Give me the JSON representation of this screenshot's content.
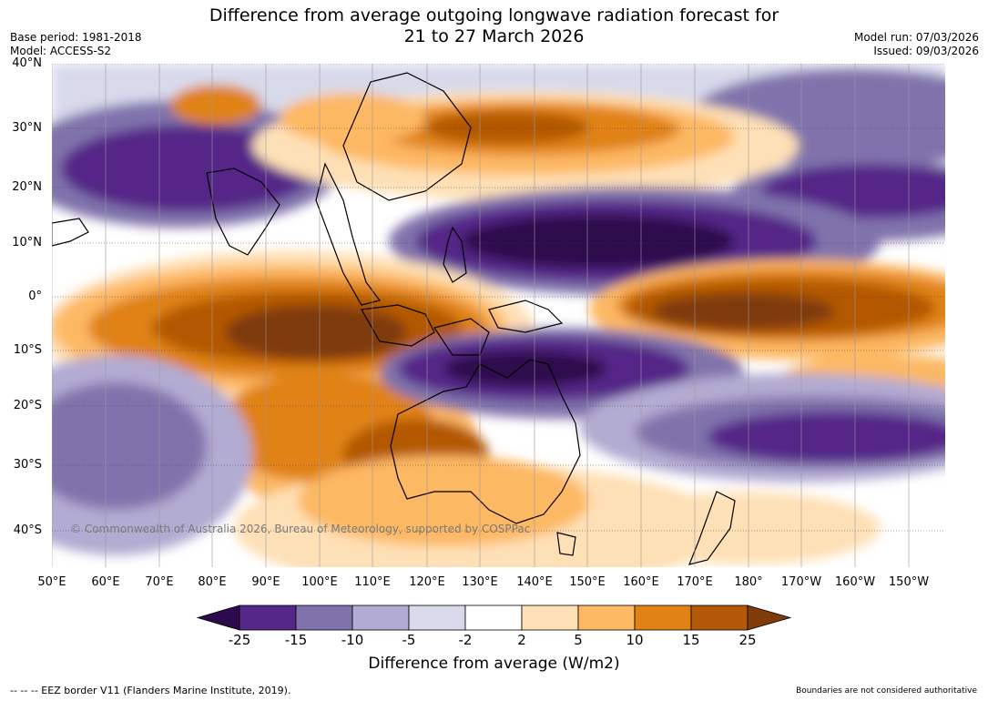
{
  "title": {
    "line1": "Difference from average outgoing longwave radiation forecast for",
    "line2": "21 to 27 March 2026"
  },
  "meta": {
    "base_period": "Base period: 1981-2018",
    "model": "Model: ACCESS-S2",
    "model_run": "Model run: 07/03/2026",
    "issued": "Issued: 09/03/2026"
  },
  "map": {
    "lat_labels": [
      "40°N",
      "30°N",
      "20°N",
      "10°N",
      "0°",
      "10°S",
      "20°S",
      "30°S",
      "40°S"
    ],
    "lon_labels": [
      "50°E",
      "60°E",
      "70°E",
      "80°E",
      "90°E",
      "100°E",
      "110°E",
      "120°E",
      "130°E",
      "140°E",
      "150°E",
      "160°E",
      "170°E",
      "180°",
      "170°W",
      "160°W",
      "150°W"
    ],
    "copyright": "© Commonwealth of Australia 2026, Bureau of Meteorology, supported by COSPPac"
  },
  "colorbar": {
    "labels": [
      "-25",
      "-15",
      "-10",
      "-5",
      "-2",
      "2",
      "5",
      "10",
      "15",
      "25"
    ],
    "colors": [
      "#2d0a4e",
      "#542788",
      "#8073ac",
      "#b2abd2",
      "#d8daeb",
      "#ffffff",
      "#fee0b6",
      "#fdb863",
      "#e08214",
      "#b35806",
      "#7f3b08"
    ],
    "title": "Difference from average (W/m2)"
  },
  "footer": {
    "eez_legend": "--  --  -- EEZ border V11 (Flanders Marine Institute, 2019).",
    "disclaimer": "Boundaries are not considered authoritative"
  }
}
